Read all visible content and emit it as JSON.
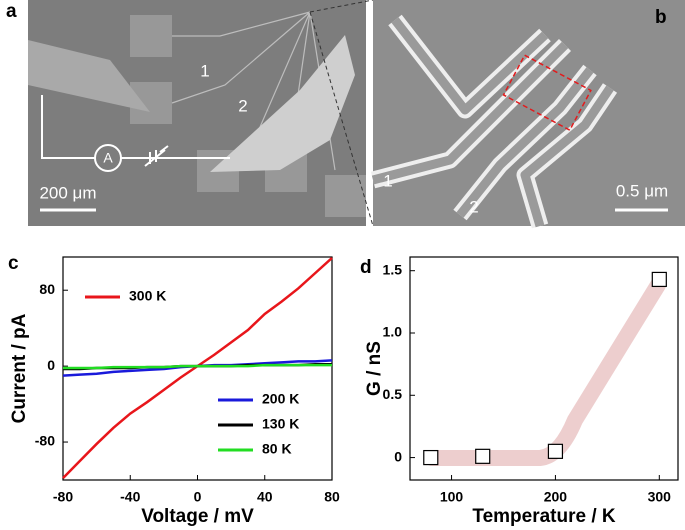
{
  "panel_a": {
    "letter": "a",
    "probe_1": "1",
    "probe_2": "2",
    "ammeter": "A",
    "scale_bar": "200 μm"
  },
  "panel_b": {
    "letter": "b",
    "electrode_1": "1",
    "electrode_2": "2",
    "scale_bar": "0.5 μm"
  },
  "chart_data": [
    {
      "type": "line",
      "panel": "c",
      "x_label": "Voltage / mV",
      "y_label": "Current / pA",
      "x": [
        -80,
        -70,
        -60,
        -50,
        -40,
        -30,
        -20,
        -10,
        0,
        10,
        20,
        30,
        40,
        50,
        60,
        70,
        80
      ],
      "series": [
        {
          "name": "300 K",
          "color": "#e8161b",
          "values": [
            -118,
            -100,
            -82,
            -65,
            -50,
            -38,
            -25,
            -12,
            0,
            12,
            25,
            38,
            55,
            68,
            82,
            98,
            114
          ]
        },
        {
          "name": "200 K",
          "color": "#1a1adb",
          "values": [
            -10,
            -9,
            -8,
            -6,
            -5,
            -4,
            -3,
            -1,
            0,
            1,
            1,
            2,
            3,
            4,
            5,
            5,
            6
          ]
        },
        {
          "name": "130 K",
          "color": "#000000",
          "values": [
            -3,
            -3,
            -2,
            -2,
            -2,
            -1,
            -1,
            0,
            0,
            0,
            0,
            1,
            1,
            1,
            1,
            2,
            2
          ]
        },
        {
          "name": "80 K",
          "color": "#22dd22",
          "values": [
            -2,
            -2,
            -2,
            -1,
            -1,
            -1,
            -1,
            0,
            0,
            0,
            0,
            0,
            1,
            1,
            1,
            1,
            1
          ]
        }
      ],
      "xlim": [
        -80,
        80
      ],
      "xticks": [
        -80,
        -40,
        0,
        40,
        80
      ],
      "ylim": [
        -120,
        115
      ],
      "yticks": [
        -80,
        0,
        80
      ]
    },
    {
      "type": "scatter",
      "panel": "d",
      "x_label": "Temperature / K",
      "y_label": "G / nS",
      "x": [
        80,
        130,
        200,
        300
      ],
      "values": [
        0,
        0.01,
        0.05,
        1.43
      ],
      "color": "#000000",
      "xlim": [
        60,
        318
      ],
      "xticks": [
        100,
        200,
        300
      ],
      "ylim": [
        -0.18,
        1.61
      ],
      "yticks": [
        0,
        0.5,
        {
          "value": 1,
          "label": "1.0"
        },
        1.5
      ]
    }
  ]
}
